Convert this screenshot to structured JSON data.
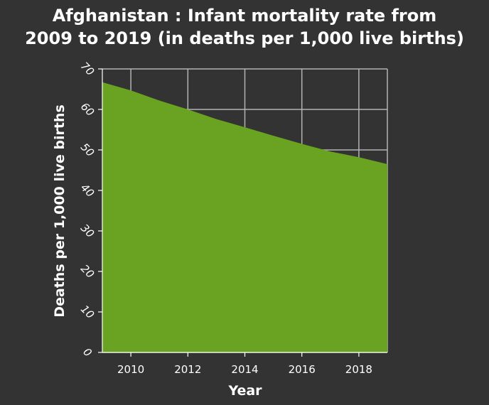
{
  "colors": {
    "background": "#333333",
    "area": "#6aa321",
    "grid": "#b3b3b3",
    "text": "#ffffff"
  },
  "chart_data": {
    "type": "area",
    "title_lines": [
      "Afghanistan : Infant mortality rate from",
      "2009 to 2019 (in deaths per 1,000 live births)"
    ],
    "xlabel": "Year",
    "ylabel": "Deaths per 1,000 live births",
    "x": [
      2009,
      2010,
      2011,
      2012,
      2013,
      2014,
      2015,
      2016,
      2017,
      2018,
      2019
    ],
    "values": [
      66.7,
      64.7,
      62.2,
      60.0,
      57.6,
      55.6,
      53.5,
      51.5,
      49.6,
      48.2,
      46.5
    ],
    "xlim": [
      2009,
      2019
    ],
    "ylim": [
      0,
      70
    ],
    "xticks": [
      2010,
      2012,
      2014,
      2016,
      2018
    ],
    "yticks": [
      0,
      10,
      20,
      30,
      40,
      50,
      60,
      70
    ],
    "grid": true,
    "legend": "none"
  }
}
